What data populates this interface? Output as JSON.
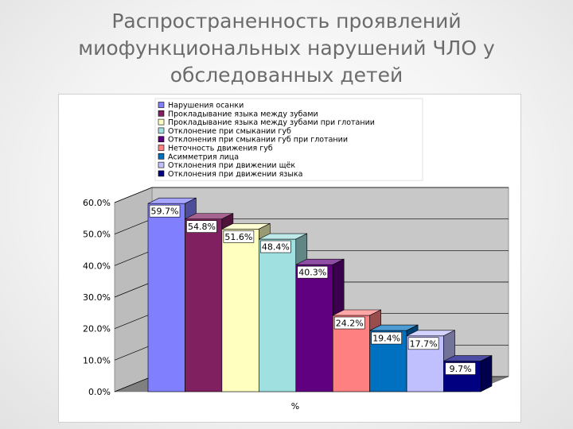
{
  "slide": {
    "title": "Распространенность проявлений\nмиофункциональных нарушений ЧЛО у\nобследованных детей"
  },
  "chart_data": {
    "type": "bar",
    "xlabel": "%",
    "ylabel": "",
    "ylim": [
      0,
      0.6
    ],
    "yticks": [
      "0.0%",
      "10.0%",
      "20.0%",
      "30.0%",
      "40.0%",
      "50.0%",
      "60.0%"
    ],
    "grid": true,
    "legend_position": "top",
    "three_d": true,
    "series": [
      {
        "name": "Нарушения осанки",
        "value": 0.597,
        "label": "59.7%",
        "color": "#8080ff"
      },
      {
        "name": "Прокладывание языка между зубами",
        "value": 0.548,
        "label": "54.8%",
        "color": "#802060"
      },
      {
        "name": "Прокладывание языка между зубами  при глотании",
        "value": 0.516,
        "label": "51.6%",
        "color": "#ffffc0"
      },
      {
        "name": "Отклонение при смыкании губ",
        "value": 0.484,
        "label": "48.4%",
        "color": "#a0e0e0"
      },
      {
        "name": "Отклонения при смыкании губ при глотании",
        "value": 0.403,
        "label": "40.3%",
        "color": "#600080"
      },
      {
        "name": "Неточность движения губ",
        "value": 0.242,
        "label": "24.2%",
        "color": "#ff8080"
      },
      {
        "name": "Асимметрия лица",
        "value": 0.194,
        "label": "19.4%",
        "color": "#0070c0"
      },
      {
        "name": "Отклонения при движении щёк",
        "value": 0.177,
        "label": "17.7%",
        "color": "#c0c0ff"
      },
      {
        "name": "Отклонения при движении языка",
        "value": 0.097,
        "label": "9.7%",
        "color": "#000080"
      }
    ]
  }
}
